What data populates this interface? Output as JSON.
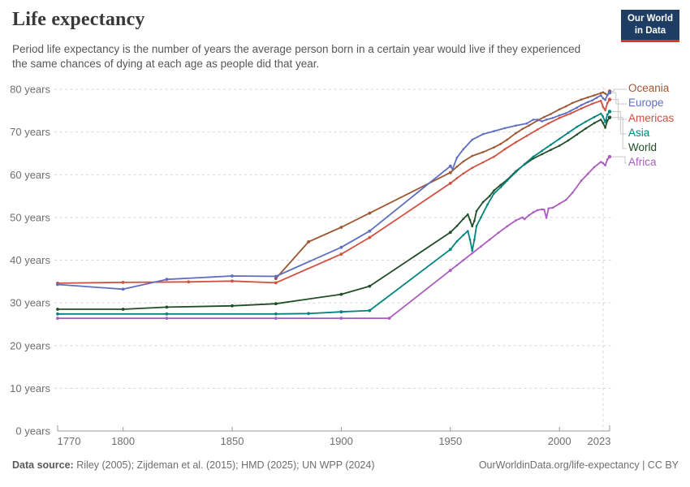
{
  "header": {
    "title": "Life expectancy",
    "subtitle": "Period life expectancy is the number of years the average person born in a certain year would live if they experienced the same chances of dying at each age as people did that year.",
    "logo": {
      "line1": "Our World",
      "line2": "in Data",
      "bg": "#1d3d63",
      "accent": "#dc352d"
    }
  },
  "chart_data": {
    "type": "line",
    "title": "Life expectancy",
    "x_range": [
      1770,
      2023
    ],
    "y_range": [
      0,
      80
    ],
    "x_ticks": [
      1770,
      1800,
      1850,
      1900,
      1950,
      2000,
      2023
    ],
    "y_ticks": [
      0,
      10,
      20,
      30,
      40,
      50,
      60,
      70,
      80
    ],
    "y_tick_suffix": " years",
    "grid": "horizontal-dashed",
    "highlight_year": 2020,
    "legend_position": "right",
    "series": [
      {
        "name": "Oceania",
        "color": "#9d5733",
        "points": [
          [
            1870,
            35.7
          ],
          [
            1885,
            44.3
          ],
          [
            1900,
            47.7
          ],
          [
            1913,
            51.0
          ],
          [
            1950,
            60.5
          ],
          [
            1953,
            61.9
          ],
          [
            1956,
            63.1
          ],
          [
            1960,
            64.4
          ],
          [
            1965,
            65.3
          ],
          [
            1970,
            66.4
          ],
          [
            1973,
            67.2
          ],
          [
            1976,
            68.2
          ],
          [
            1980,
            69.7
          ],
          [
            1983,
            70.7
          ],
          [
            1986,
            71.5
          ],
          [
            1990,
            72.7
          ],
          [
            1993,
            73.5
          ],
          [
            1996,
            74.2
          ],
          [
            2000,
            75.3
          ],
          [
            2003,
            76.0
          ],
          [
            2006,
            76.8
          ],
          [
            2010,
            77.6
          ],
          [
            2013,
            78.1
          ],
          [
            2016,
            78.6
          ],
          [
            2019,
            79.1
          ],
          [
            2020,
            79.3
          ],
          [
            2021,
            79.0
          ],
          [
            2022,
            78.6
          ],
          [
            2023,
            79.5
          ]
        ]
      },
      {
        "name": "Europe",
        "color": "#5e6fc0",
        "points": [
          [
            1770,
            34.3
          ],
          [
            1800,
            33.2
          ],
          [
            1820,
            35.5
          ],
          [
            1850,
            36.3
          ],
          [
            1870,
            36.2
          ],
          [
            1900,
            43.0
          ],
          [
            1913,
            46.8
          ],
          [
            1950,
            62.0
          ],
          [
            1951,
            61.3
          ],
          [
            1953,
            64.0
          ],
          [
            1956,
            66.0
          ],
          [
            1960,
            68.2
          ],
          [
            1965,
            69.5
          ],
          [
            1970,
            70.2
          ],
          [
            1975,
            70.9
          ],
          [
            1980,
            71.5
          ],
          [
            1985,
            72.0
          ],
          [
            1988,
            72.9
          ],
          [
            1990,
            72.9
          ],
          [
            1992,
            72.5
          ],
          [
            1994,
            72.9
          ],
          [
            1997,
            73.3
          ],
          [
            2000,
            73.9
          ],
          [
            2003,
            74.4
          ],
          [
            2005,
            74.9
          ],
          [
            2008,
            75.7
          ],
          [
            2010,
            76.3
          ],
          [
            2013,
            77.0
          ],
          [
            2015,
            77.4
          ],
          [
            2017,
            78.0
          ],
          [
            2019,
            78.6
          ],
          [
            2020,
            77.9
          ],
          [
            2021,
            77.5
          ],
          [
            2022,
            78.7
          ],
          [
            2023,
            79.2
          ]
        ]
      },
      {
        "name": "Americas",
        "color": "#cf5240",
        "points": [
          [
            1770,
            34.6
          ],
          [
            1800,
            34.8
          ],
          [
            1830,
            34.9
          ],
          [
            1850,
            35.1
          ],
          [
            1870,
            34.7
          ],
          [
            1900,
            41.4
          ],
          [
            1913,
            45.3
          ],
          [
            1950,
            58.0
          ],
          [
            1953,
            59.2
          ],
          [
            1956,
            60.3
          ],
          [
            1960,
            61.6
          ],
          [
            1965,
            62.9
          ],
          [
            1970,
            64.2
          ],
          [
            1975,
            66.0
          ],
          [
            1980,
            67.6
          ],
          [
            1985,
            69.1
          ],
          [
            1990,
            70.6
          ],
          [
            1995,
            72.0
          ],
          [
            2000,
            73.3
          ],
          [
            2005,
            74.3
          ],
          [
            2010,
            75.5
          ],
          [
            2015,
            76.6
          ],
          [
            2019,
            77.3
          ],
          [
            2020,
            75.9
          ],
          [
            2021,
            75.1
          ],
          [
            2022,
            76.8
          ],
          [
            2023,
            77.6
          ]
        ]
      },
      {
        "name": "Asia",
        "color": "#00847e",
        "points": [
          [
            1770,
            27.4
          ],
          [
            1820,
            27.4
          ],
          [
            1870,
            27.4
          ],
          [
            1885,
            27.5
          ],
          [
            1900,
            27.9
          ],
          [
            1913,
            28.2
          ],
          [
            1950,
            42.5
          ],
          [
            1953,
            44.4
          ],
          [
            1956,
            45.9
          ],
          [
            1958,
            46.8
          ],
          [
            1959,
            44.8
          ],
          [
            1960,
            42.2
          ],
          [
            1961,
            44.8
          ],
          [
            1962,
            48.0
          ],
          [
            1964,
            50.0
          ],
          [
            1967,
            53.0
          ],
          [
            1970,
            55.6
          ],
          [
            1973,
            57.0
          ],
          [
            1976,
            58.6
          ],
          [
            1980,
            60.6
          ],
          [
            1984,
            62.5
          ],
          [
            1988,
            64.2
          ],
          [
            1992,
            65.6
          ],
          [
            1996,
            67.0
          ],
          [
            2000,
            68.4
          ],
          [
            2004,
            69.8
          ],
          [
            2008,
            71.2
          ],
          [
            2012,
            72.4
          ],
          [
            2016,
            73.5
          ],
          [
            2019,
            74.3
          ],
          [
            2020,
            73.6
          ],
          [
            2021,
            72.3
          ],
          [
            2022,
            74.1
          ],
          [
            2023,
            74.8
          ]
        ]
      },
      {
        "name": "World",
        "color": "#204e27",
        "points": [
          [
            1770,
            28.5
          ],
          [
            1800,
            28.5
          ],
          [
            1820,
            29.0
          ],
          [
            1850,
            29.3
          ],
          [
            1870,
            29.8
          ],
          [
            1900,
            32.0
          ],
          [
            1913,
            33.9
          ],
          [
            1950,
            46.5
          ],
          [
            1953,
            48.0
          ],
          [
            1956,
            49.7
          ],
          [
            1958,
            50.7
          ],
          [
            1959,
            49.4
          ],
          [
            1960,
            47.9
          ],
          [
            1961,
            49.2
          ],
          [
            1962,
            51.5
          ],
          [
            1965,
            53.6
          ],
          [
            1968,
            55.0
          ],
          [
            1970,
            56.3
          ],
          [
            1973,
            57.6
          ],
          [
            1976,
            58.8
          ],
          [
            1980,
            60.8
          ],
          [
            1984,
            62.4
          ],
          [
            1988,
            63.8
          ],
          [
            1992,
            64.8
          ],
          [
            1996,
            65.8
          ],
          [
            2000,
            66.8
          ],
          [
            2004,
            68.0
          ],
          [
            2008,
            69.4
          ],
          [
            2012,
            70.8
          ],
          [
            2016,
            72.1
          ],
          [
            2019,
            72.9
          ],
          [
            2020,
            72.1
          ],
          [
            2021,
            71.0
          ],
          [
            2022,
            72.7
          ],
          [
            2023,
            73.4
          ]
        ]
      },
      {
        "name": "Africa",
        "color": "#ab5cbf",
        "points": [
          [
            1770,
            26.4
          ],
          [
            1820,
            26.4
          ],
          [
            1870,
            26.4
          ],
          [
            1900,
            26.4
          ],
          [
            1922,
            26.4
          ],
          [
            1950,
            37.6
          ],
          [
            1953,
            38.8
          ],
          [
            1956,
            40.0
          ],
          [
            1960,
            41.6
          ],
          [
            1964,
            43.2
          ],
          [
            1968,
            44.8
          ],
          [
            1972,
            46.4
          ],
          [
            1976,
            47.9
          ],
          [
            1980,
            49.3
          ],
          [
            1983,
            50.0
          ],
          [
            1984,
            49.6
          ],
          [
            1986,
            50.5
          ],
          [
            1988,
            51.2
          ],
          [
            1990,
            51.7
          ],
          [
            1992,
            51.9
          ],
          [
            1993,
            51.8
          ],
          [
            1994,
            49.9
          ],
          [
            1995,
            52.1
          ],
          [
            1997,
            52.3
          ],
          [
            2000,
            53.2
          ],
          [
            2003,
            54.1
          ],
          [
            2006,
            55.8
          ],
          [
            2010,
            58.6
          ],
          [
            2013,
            60.2
          ],
          [
            2016,
            61.8
          ],
          [
            2019,
            63.0
          ],
          [
            2020,
            62.7
          ],
          [
            2021,
            62.2
          ],
          [
            2022,
            63.6
          ],
          [
            2023,
            64.2
          ]
        ]
      }
    ]
  },
  "footer": {
    "source_label": "Data source:",
    "source_text": "Riley (2005); Zijdeman et al. (2015); HMD (2025); UN WPP (2024)",
    "link_text": "OurWorldinData.org/life-expectancy | CC BY"
  },
  "colors": {
    "grid": "#d7d7d7",
    "axis": "#999999",
    "tick_text": "#6e6e6e",
    "connector": "#c8c8c8"
  }
}
